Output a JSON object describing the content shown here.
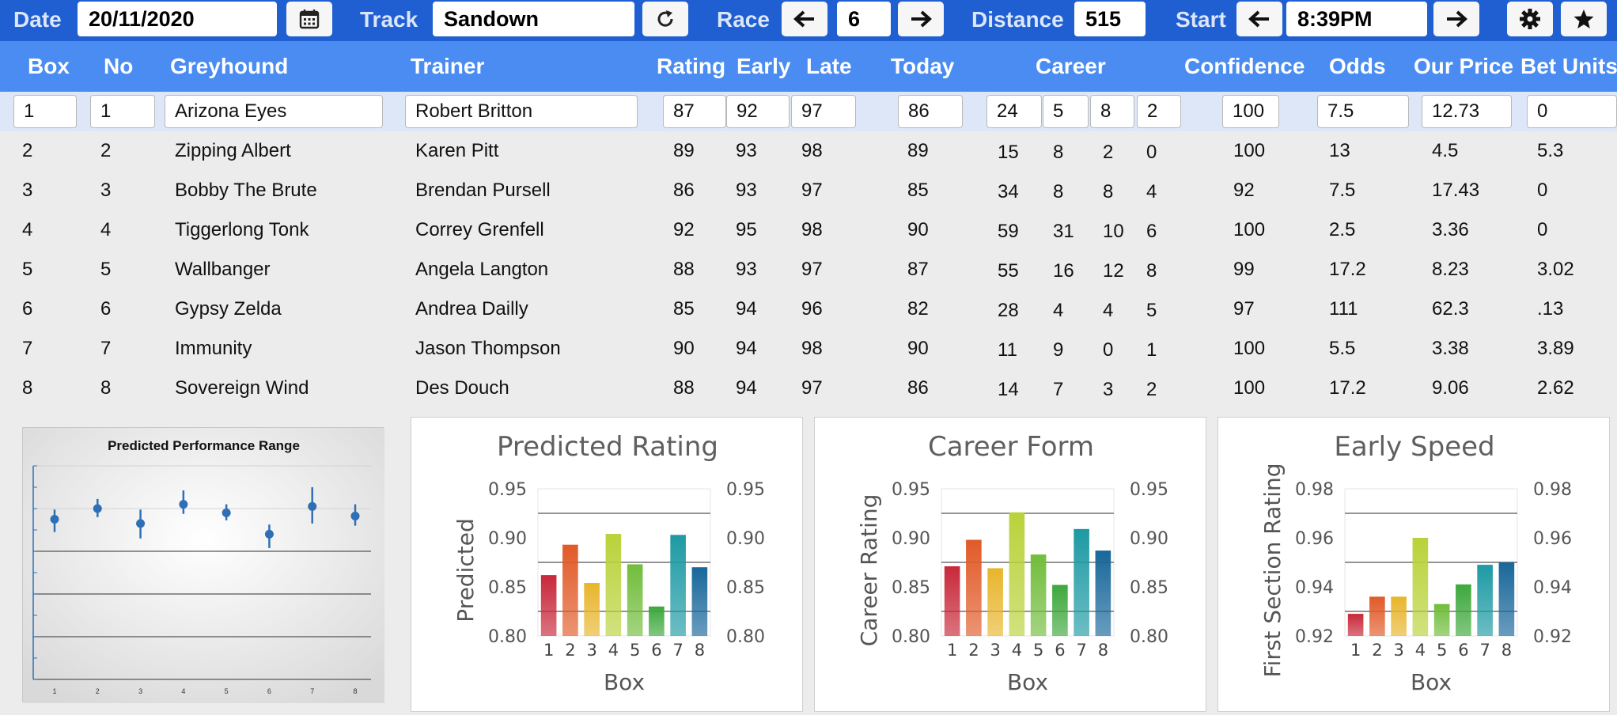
{
  "toolbar": {
    "date_label": "Date",
    "date_value": "20/11/2020",
    "calendar_icon": "calendar-icon",
    "track_label": "Track",
    "track_value": "Sandown",
    "refresh_icon": "refresh-icon",
    "race_label": "Race",
    "race_value": "6",
    "distance_label": "Distance",
    "distance_value": "515",
    "start_label": "Start",
    "start_value": "8:39PM",
    "settings_icon": "gear-icon",
    "favourite_icon": "star-icon"
  },
  "columns": [
    "Box",
    "No",
    "Greyhound",
    "Trainer",
    "Rating",
    "Early",
    "Late",
    "Today",
    "Career",
    "Confidence",
    "Odds",
    "Our Price",
    "Bet Units"
  ],
  "rows": [
    {
      "box": "1",
      "no": "1",
      "greyhound": "Arizona Eyes",
      "trainer": "Robert Britton",
      "rating": "87",
      "early": "92",
      "late": "97",
      "today": "86",
      "career": [
        "24",
        "5",
        "8",
        "2"
      ],
      "confidence": "100",
      "odds": "7.5",
      "our_price": "12.73",
      "bet_units": "0"
    },
    {
      "box": "2",
      "no": "2",
      "greyhound": "Zipping Albert",
      "trainer": "Karen Pitt",
      "rating": "89",
      "early": "93",
      "late": "98",
      "today": "89",
      "career": [
        "15",
        "8",
        "2",
        "0"
      ],
      "confidence": "100",
      "odds": "13",
      "our_price": "4.5",
      "bet_units": "5.3"
    },
    {
      "box": "3",
      "no": "3",
      "greyhound": "Bobby The Brute",
      "trainer": "Brendan Pursell",
      "rating": "86",
      "early": "93",
      "late": "97",
      "today": "85",
      "career": [
        "34",
        "8",
        "8",
        "4"
      ],
      "confidence": "92",
      "odds": "7.5",
      "our_price": "17.43",
      "bet_units": "0"
    },
    {
      "box": "4",
      "no": "4",
      "greyhound": "Tiggerlong Tonk",
      "trainer": "Correy Grenfell",
      "rating": "92",
      "early": "95",
      "late": "98",
      "today": "90",
      "career": [
        "59",
        "31",
        "10",
        "6"
      ],
      "confidence": "100",
      "odds": "2.5",
      "our_price": "3.36",
      "bet_units": "0"
    },
    {
      "box": "5",
      "no": "5",
      "greyhound": "Wallbanger",
      "trainer": "Angela Langton",
      "rating": "88",
      "early": "93",
      "late": "97",
      "today": "87",
      "career": [
        "55",
        "16",
        "12",
        "8"
      ],
      "confidence": "99",
      "odds": "17.2",
      "our_price": "8.23",
      "bet_units": "3.02"
    },
    {
      "box": "6",
      "no": "6",
      "greyhound": "Gypsy Zelda",
      "trainer": "Andrea Dailly",
      "rating": "85",
      "early": "94",
      "late": "96",
      "today": "82",
      "career": [
        "28",
        "4",
        "4",
        "5"
      ],
      "confidence": "97",
      "odds": "111",
      "our_price": "62.3",
      "bet_units": ".13"
    },
    {
      "box": "7",
      "no": "7",
      "greyhound": "Immunity",
      "trainer": "Jason Thompson",
      "rating": "90",
      "early": "94",
      "late": "98",
      "today": "90",
      "career": [
        "11",
        "9",
        "0",
        "1"
      ],
      "confidence": "100",
      "odds": "5.5",
      "our_price": "3.38",
      "bet_units": "3.89"
    },
    {
      "box": "8",
      "no": "8",
      "greyhound": "Sovereign Wind",
      "trainer": "Des Douch",
      "rating": "88",
      "early": "94",
      "late": "97",
      "today": "86",
      "career": [
        "14",
        "7",
        "3",
        "2"
      ],
      "confidence": "100",
      "odds": "17.2",
      "our_price": "9.06",
      "bet_units": "2.62"
    }
  ],
  "colors": {
    "toolbar": "#1f5fd1",
    "header": "#4a8cf2",
    "selected_row": "#dde7f8",
    "bar_palette": [
      "#c8283a",
      "#e15a28",
      "#e8b52c",
      "#b9d23a",
      "#72bd3c",
      "#3ea83c",
      "#1e9aa4",
      "#19679a"
    ],
    "error_point": "#2f6fb6"
  },
  "chart_data": [
    {
      "type": "scatter",
      "title": "Predicted Performance Range",
      "x": [
        1,
        2,
        3,
        4,
        5,
        6,
        7,
        8
      ],
      "y": [
        0.87,
        0.88,
        0.866,
        0.884,
        0.876,
        0.856,
        0.882,
        0.873
      ],
      "y_low": [
        0.858,
        0.872,
        0.852,
        0.875,
        0.869,
        0.843,
        0.866,
        0.864
      ],
      "y_high": [
        0.879,
        0.889,
        0.879,
        0.897,
        0.884,
        0.865,
        0.9,
        0.884
      ],
      "ylim": [
        0.72,
        0.92
      ],
      "grid": true
    },
    {
      "type": "bar",
      "title": "Predicted Rating",
      "categories": [
        "1",
        "2",
        "3",
        "4",
        "5",
        "6",
        "7",
        "8"
      ],
      "values": [
        0.862,
        0.893,
        0.854,
        0.904,
        0.873,
        0.83,
        0.903,
        0.87
      ],
      "xlabel": "Box",
      "ylabel": "Predicted",
      "ylim": [
        0.8,
        0.95
      ],
      "yticks": [
        "0.95",
        "0.90",
        "0.85",
        "0.80"
      ],
      "right_axis": true,
      "grid": true
    },
    {
      "type": "bar",
      "title": "Career Form",
      "categories": [
        "1",
        "2",
        "3",
        "4",
        "5",
        "6",
        "7",
        "8"
      ],
      "values": [
        0.871,
        0.898,
        0.869,
        0.926,
        0.883,
        0.852,
        0.909,
        0.887
      ],
      "xlabel": "Box",
      "ylabel": "Career Rating",
      "ylim": [
        0.8,
        0.95
      ],
      "yticks": [
        "0.95",
        "0.90",
        "0.85",
        "0.80"
      ],
      "right_axis": true,
      "grid": true
    },
    {
      "type": "bar",
      "title": "Early Speed",
      "categories": [
        "1",
        "2",
        "3",
        "4",
        "5",
        "6",
        "7",
        "8"
      ],
      "values": [
        0.929,
        0.936,
        0.936,
        0.96,
        0.933,
        0.941,
        0.949,
        0.95
      ],
      "xlabel": "Box",
      "ylabel": "First Section Rating",
      "ylim": [
        0.92,
        0.98
      ],
      "yticks": [
        "0.98",
        "0.96",
        "0.94",
        "0.92"
      ],
      "right_axis": true,
      "grid": true
    }
  ]
}
